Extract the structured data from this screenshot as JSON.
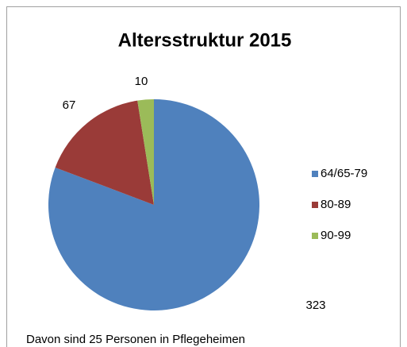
{
  "chart_data": {
    "type": "pie",
    "title": "Altersstruktur 2015",
    "categories": [
      "64/65-79",
      "80-89",
      "90-99"
    ],
    "values": [
      323,
      67,
      10
    ],
    "colors": [
      "#4f81bd",
      "#9a3b38",
      "#9bbb59"
    ],
    "legend": "right",
    "annotation": "Davon sind 25 Personen in Pflegeheimen"
  }
}
